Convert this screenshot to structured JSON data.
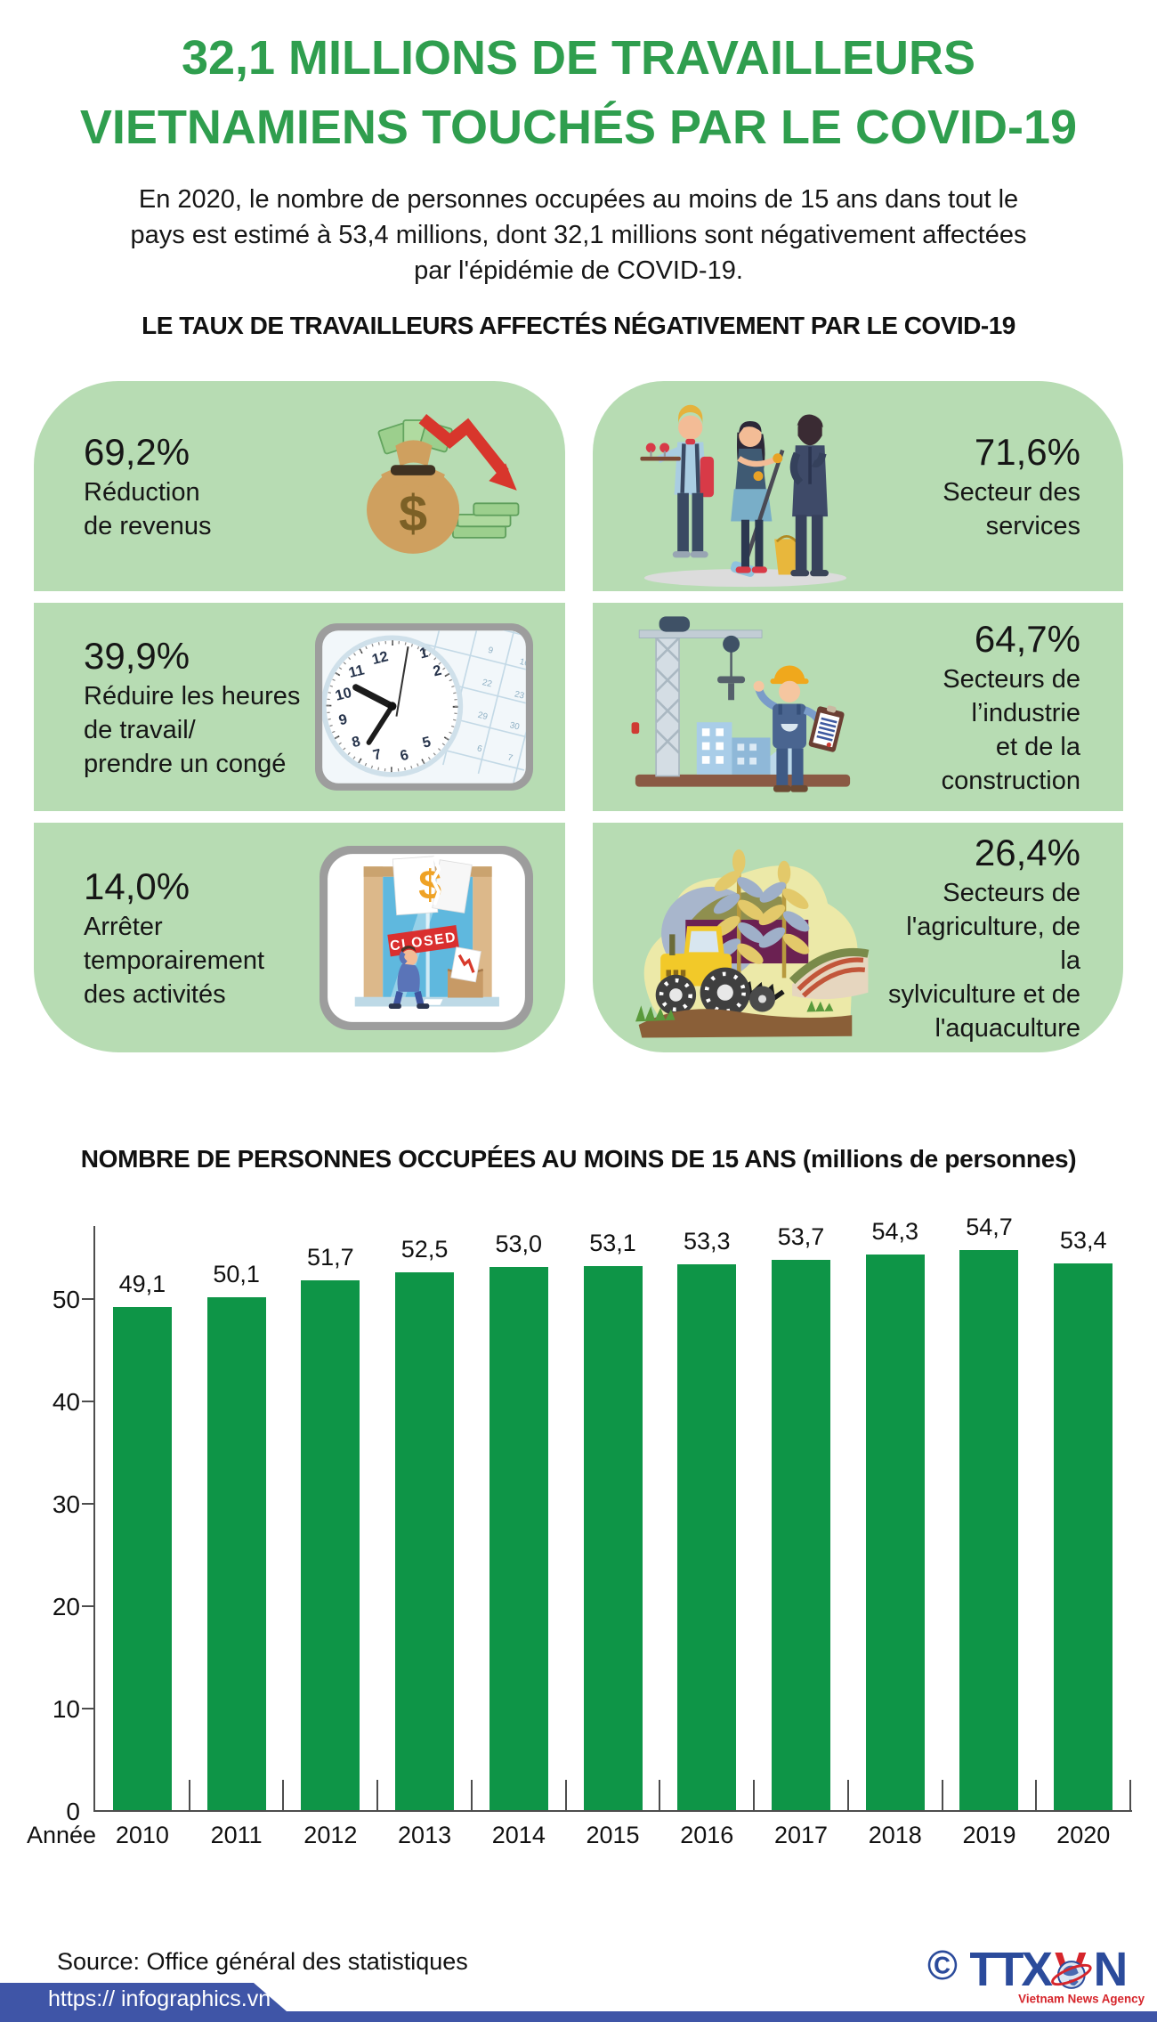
{
  "header": {
    "title_line1": "32,1 MILLIONS DE TRAVAILLEURS",
    "title_line2": "VIETNAMIENS TOUCHÉS PAR LE COVID-19",
    "subtitle": "En 2020, le nombre de personnes occupées au moins de 15 ans dans tout le\npays est estimé à 53,4 millions, dont 32,1 millions sont négativement affectées\npar l'épidémie de COVID-19.",
    "section_heading": "LE TAUX DE TRAVAILLEURS AFFECTÉS NÉGATIVEMENT PAR LE COVID-19"
  },
  "stats": [
    {
      "value": "69,2%",
      "label": "Réduction\nde revenus",
      "icon": "money-decline-icon"
    },
    {
      "value": "71,6%",
      "label": "Secteur des services",
      "icon": "service-workers-icon"
    },
    {
      "value": "39,9%",
      "label": "Réduire les heures\nde travail/\nprendre un congé",
      "icon": "clock-calendar-icon"
    },
    {
      "value": "64,7%",
      "label": "Secteurs de\nl’industrie\net de la construction",
      "icon": "construction-worker-icon"
    },
    {
      "value": "14,0%",
      "label": "Arrêter\ntemporairement\ndes activités",
      "icon": "closed-business-icon"
    },
    {
      "value": "26,4%",
      "label": "Secteurs de\nl'agriculture, de la\nsylviculture et de\nl'aquaculture",
      "icon": "agriculture-icon"
    }
  ],
  "chart_data": {
    "type": "bar",
    "title": "NOMBRE DE PERSONNES OCCUPÉES AU MOINS DE 15 ANS (millions de personnes)",
    "categories": [
      "2010",
      "2011",
      "2012",
      "2013",
      "2014",
      "2015",
      "2016",
      "2017",
      "2018",
      "2019",
      "2020"
    ],
    "values": [
      49.1,
      50.1,
      51.7,
      52.5,
      53.0,
      53.1,
      53.3,
      53.7,
      54.3,
      54.7,
      53.4
    ],
    "value_labels": [
      "49,1",
      "50,1",
      "51,7",
      "52,5",
      "53,0",
      "53,1",
      "53,3",
      "53,7",
      "54,3",
      "54,7",
      "53,4"
    ],
    "x_axis_label": "Année",
    "y_ticks": [
      0,
      10,
      20,
      30,
      40,
      50
    ],
    "ylim": [
      0,
      57
    ],
    "grid": false,
    "legend": null,
    "bar_color": "#0e9547"
  },
  "footer": {
    "source": "Source: Office général des statistiques",
    "copyright": "©",
    "logo_ttx": "TTX",
    "logo_v": "V",
    "logo_n": "N",
    "logo_subtext": "Vietnam News Agency",
    "url": "https:// infographics.vn"
  },
  "colors": {
    "title_green": "#2f9e4e",
    "card_green": "#b7dcb3",
    "bar_green": "#0e9547",
    "footer_blue": "#3f55a7",
    "logo_blue": "#2b4b9b",
    "logo_red": "#d6252b"
  }
}
